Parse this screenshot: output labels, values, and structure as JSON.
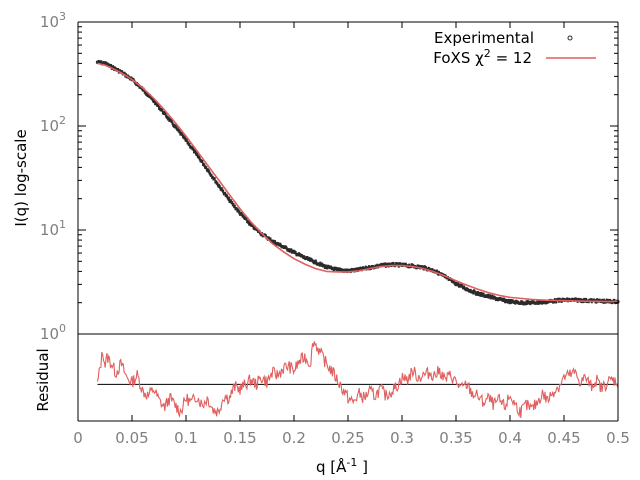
{
  "colors": {
    "experimental": "#2b2b2b",
    "fit": "#e05f5f",
    "axis": "#000000",
    "tick_text": "#7f7f7f"
  },
  "chart_data": [
    {
      "type": "line",
      "panel": "top",
      "y_scale": "log",
      "xlim": [
        0,
        0.5
      ],
      "ylim": [
        1,
        1000
      ],
      "ylabel": "I(q) log-scale",
      "y_ticks": [
        {
          "value": 1,
          "base": "10",
          "exp": "0"
        },
        {
          "value": 10,
          "base": "10",
          "exp": "1"
        },
        {
          "value": 100,
          "base": "10",
          "exp": "2"
        },
        {
          "value": 1000,
          "base": "10",
          "exp": "3"
        }
      ],
      "legend_placement": "top-right",
      "legend": {
        "experimental": "Experimental",
        "fit_prefix": "FoXS χ",
        "fit_sup": "2",
        "fit_suffix": " = 12"
      },
      "series": [
        {
          "name": "Experimental",
          "style": "points",
          "x": [
            0.018,
            0.025,
            0.03,
            0.04,
            0.05,
            0.06,
            0.07,
            0.08,
            0.09,
            0.1,
            0.11,
            0.12,
            0.13,
            0.14,
            0.15,
            0.16,
            0.17,
            0.18,
            0.19,
            0.2,
            0.21,
            0.22,
            0.23,
            0.24,
            0.25,
            0.26,
            0.27,
            0.28,
            0.29,
            0.3,
            0.31,
            0.32,
            0.33,
            0.34,
            0.35,
            0.36,
            0.37,
            0.38,
            0.39,
            0.4,
            0.41,
            0.42,
            0.43,
            0.44,
            0.45,
            0.46,
            0.47,
            0.48,
            0.49,
            0.5
          ],
          "y": [
            410,
            400,
            375,
            330,
            280,
            225,
            175,
            132,
            98,
            73,
            53,
            38,
            27,
            19.5,
            14.5,
            11.2,
            9.2,
            7.8,
            6.9,
            6.1,
            5.4,
            4.9,
            4.4,
            4.15,
            4.05,
            4.15,
            4.35,
            4.55,
            4.65,
            4.6,
            4.5,
            4.35,
            4.05,
            3.55,
            3.05,
            2.7,
            2.45,
            2.3,
            2.15,
            2.05,
            2.0,
            2.0,
            2.02,
            2.08,
            2.12,
            2.12,
            2.1,
            2.08,
            2.06,
            2.05
          ]
        },
        {
          "name": "FoXS χ2 = 12",
          "style": "line",
          "x": [
            0.018,
            0.025,
            0.03,
            0.04,
            0.05,
            0.06,
            0.07,
            0.08,
            0.09,
            0.1,
            0.11,
            0.12,
            0.13,
            0.14,
            0.15,
            0.16,
            0.17,
            0.18,
            0.19,
            0.2,
            0.21,
            0.22,
            0.23,
            0.24,
            0.25,
            0.26,
            0.27,
            0.28,
            0.29,
            0.3,
            0.31,
            0.32,
            0.33,
            0.34,
            0.35,
            0.36,
            0.37,
            0.38,
            0.39,
            0.4,
            0.41,
            0.42,
            0.43,
            0.44,
            0.45,
            0.46,
            0.47,
            0.48,
            0.49,
            0.5
          ],
          "y": [
            400,
            385,
            365,
            325,
            280,
            232,
            185,
            143,
            108,
            80,
            58,
            42,
            30.5,
            22,
            16,
            12,
            9.3,
            7.4,
            6.2,
            5.3,
            4.7,
            4.25,
            4.0,
            3.95,
            3.95,
            4.05,
            4.25,
            4.45,
            4.55,
            4.55,
            4.45,
            4.25,
            3.95,
            3.6,
            3.25,
            2.95,
            2.7,
            2.5,
            2.35,
            2.25,
            2.2,
            2.15,
            2.12,
            2.1,
            2.09,
            2.08,
            2.07,
            2.06,
            2.05,
            2.05
          ]
        }
      ]
    },
    {
      "type": "line",
      "panel": "bottom",
      "ylabel": "Residual",
      "xlabel_prefix": "q [Å",
      "xlabel_sup": "-1",
      "xlabel_suffix": " ]",
      "xlim": [
        0,
        0.5
      ],
      "x_ticks": [
        "0",
        "0.05",
        "0.1",
        "0.15",
        "0.2",
        "0.25",
        "0.3",
        "0.35",
        "0.4",
        "0.45",
        "0.5"
      ],
      "x_tick_values": [
        0,
        0.05,
        0.1,
        0.15,
        0.2,
        0.25,
        0.3,
        0.35,
        0.4,
        0.45,
        0.5
      ],
      "ylim": [
        -1.6,
        2.2
      ],
      "baseline": 0,
      "series": [
        {
          "name": "residual",
          "x": [
            0.018,
            0.02,
            0.023,
            0.025,
            0.027,
            0.03,
            0.035,
            0.04,
            0.045,
            0.05,
            0.055,
            0.06,
            0.065,
            0.07,
            0.075,
            0.08,
            0.085,
            0.09,
            0.095,
            0.1,
            0.105,
            0.11,
            0.115,
            0.12,
            0.125,
            0.13,
            0.135,
            0.14,
            0.145,
            0.15,
            0.155,
            0.16,
            0.165,
            0.17,
            0.175,
            0.18,
            0.185,
            0.19,
            0.195,
            0.2,
            0.205,
            0.21,
            0.215,
            0.218,
            0.222,
            0.225,
            0.23,
            0.235,
            0.24,
            0.245,
            0.25,
            0.255,
            0.26,
            0.265,
            0.27,
            0.275,
            0.28,
            0.285,
            0.29,
            0.295,
            0.3,
            0.305,
            0.31,
            0.315,
            0.32,
            0.325,
            0.33,
            0.335,
            0.34,
            0.345,
            0.35,
            0.355,
            0.36,
            0.365,
            0.37,
            0.375,
            0.38,
            0.385,
            0.39,
            0.395,
            0.4,
            0.405,
            0.41,
            0.415,
            0.42,
            0.425,
            0.43,
            0.435,
            0.44,
            0.445,
            0.45,
            0.455,
            0.46,
            0.465,
            0.47,
            0.475,
            0.48,
            0.485,
            0.49,
            0.495,
            0.5
          ],
          "y": [
            0.0,
            0.6,
            1.5,
            0.8,
            1.2,
            1.0,
            0.5,
            0.9,
            0.3,
            0.1,
            0.4,
            -0.3,
            -0.5,
            -0.2,
            -0.7,
            -1.0,
            -0.6,
            -0.9,
            -1.2,
            -0.6,
            -0.8,
            -0.5,
            -0.9,
            -0.6,
            -1.1,
            -1.2,
            -0.5,
            -0.6,
            -0.1,
            -0.2,
            0.0,
            0.2,
            0.0,
            0.3,
            0.1,
            0.5,
            0.4,
            0.7,
            0.8,
            0.6,
            1.0,
            1.2,
            0.9,
            1.9,
            1.6,
            1.3,
            0.9,
            0.6,
            0.2,
            -0.2,
            -0.6,
            -0.8,
            -0.4,
            -0.6,
            -0.3,
            -0.5,
            -0.2,
            -0.5,
            -0.3,
            -0.1,
            0.3,
            0.2,
            0.6,
            0.3,
            0.4,
            0.5,
            0.4,
            0.6,
            0.2,
            0.4,
            0.1,
            -0.2,
            0.0,
            -0.4,
            -0.5,
            -0.8,
            -0.6,
            -0.9,
            -0.7,
            -1.0,
            -0.5,
            -0.9,
            -1.2,
            -0.9,
            -1.1,
            -0.8,
            -0.4,
            -0.7,
            -0.3,
            -0.1,
            0.3,
            0.4,
            0.5,
            0.1,
            0.3,
            -0.1,
            0.2,
            -0.2,
            0.1,
            0.2,
            0.1
          ]
        }
      ]
    }
  ]
}
